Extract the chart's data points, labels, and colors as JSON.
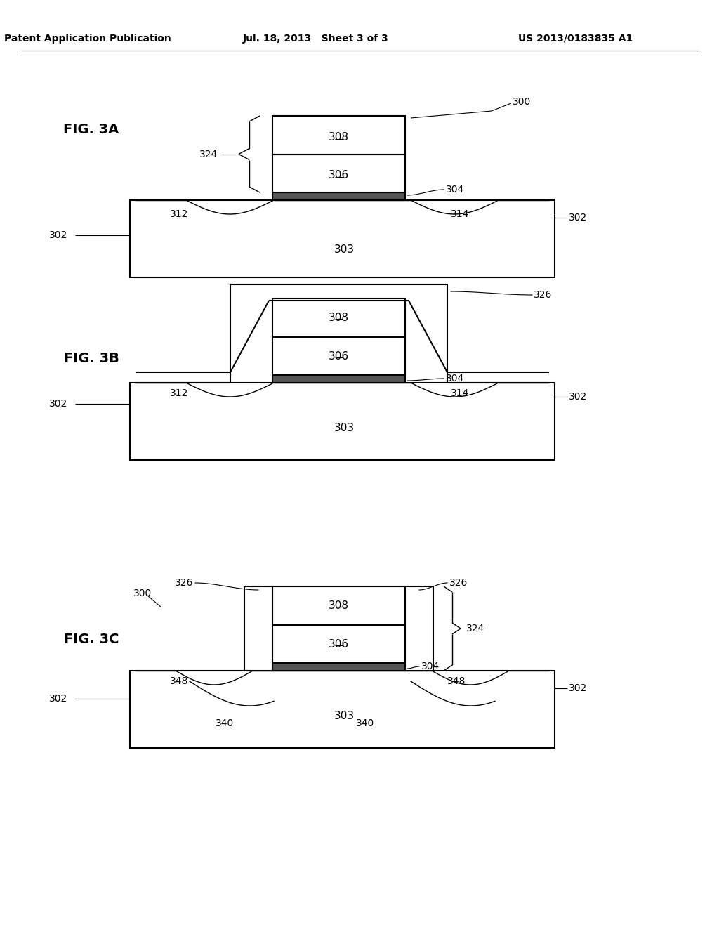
{
  "header_left": "Patent Application Publication",
  "header_mid": "Jul. 18, 2013   Sheet 3 of 3",
  "header_right": "US 2013/0183835 A1",
  "bg_color": "#ffffff",
  "line_color": "#000000"
}
